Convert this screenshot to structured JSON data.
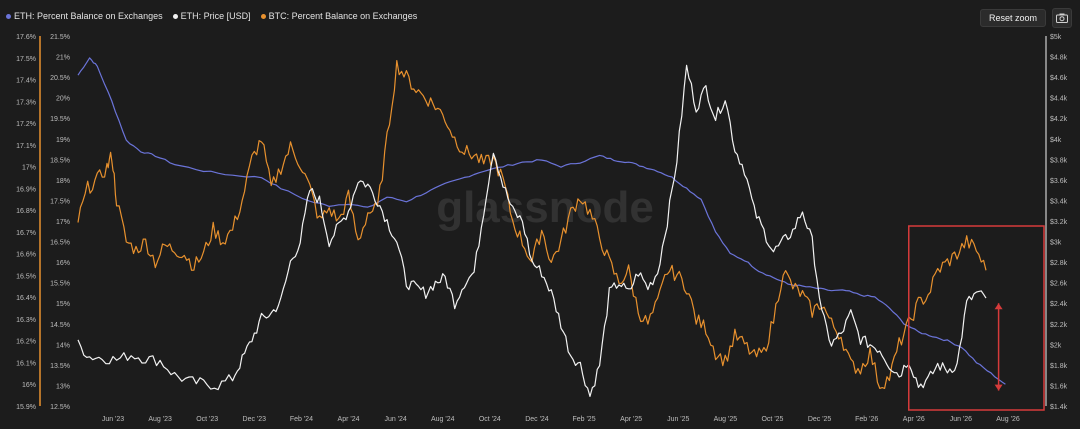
{
  "legend": {
    "items": [
      {
        "label": "ETH: Percent Balance on Exchanges",
        "color": "#6b74d9"
      },
      {
        "label": "ETH: Price [USD]",
        "color": "#f2f2f2"
      },
      {
        "label": "BTC: Percent Balance on Exchanges",
        "color": "#e8912e"
      }
    ]
  },
  "toolbar": {
    "reset_label": "Reset zoom",
    "camera_icon": "camera-icon"
  },
  "watermark": "glassnode",
  "chart_data": {
    "type": "line",
    "title": "",
    "x_range": [
      "2023-04",
      "2026-10"
    ],
    "x_ticks": [
      "Jun '23",
      "Aug '23",
      "Oct '23",
      "Dec '23",
      "Feb '24",
      "Apr '24",
      "Jun '24",
      "Aug '24",
      "Oct '24",
      "Dec '24",
      "Feb '25",
      "Apr '25",
      "Jun '25",
      "Aug '25",
      "Oct '25",
      "Dec '25",
      "Feb '26",
      "Apr '26",
      "Jun '26",
      "Aug '26"
    ],
    "axes": {
      "eth_balance": {
        "side": "left-outer",
        "ticks": [
          "15.9%",
          "16%",
          "16.1%",
          "16.2%",
          "16.3%",
          "16.4%",
          "16.5%",
          "16.6%",
          "16.7%",
          "16.8%",
          "16.9%",
          "17%",
          "17.1%",
          "17.2%",
          "17.3%",
          "17.4%",
          "17.5%",
          "17.6%"
        ],
        "range": [
          15.9,
          17.6
        ]
      },
      "btc_balance": {
        "side": "left-inner",
        "ticks": [
          "12.5%",
          "13%",
          "13.5%",
          "14%",
          "14.5%",
          "15%",
          "15.5%",
          "16%",
          "16.5%",
          "17%",
          "17.5%",
          "18%",
          "18.5%",
          "19%",
          "19.5%",
          "20%",
          "20.5%",
          "21%",
          "21.5%"
        ],
        "range": [
          12.5,
          21.5
        ]
      },
      "eth_price": {
        "side": "right",
        "ticks": [
          "$1.4k",
          "$1.6k",
          "$1.8k",
          "$2k",
          "$2.2k",
          "$2.4k",
          "$2.6k",
          "$2.8k",
          "$3k",
          "$3.2k",
          "$3.4k",
          "$3.6k",
          "$3.8k",
          "$4k",
          "$4.2k",
          "$4.4k",
          "$4.6k",
          "$4.8k",
          "$5k"
        ],
        "range": [
          1400,
          5000
        ]
      }
    },
    "grid": false,
    "legend_position": "top-left",
    "series": [
      {
        "name": "ETH: Percent Balance on Exchanges",
        "axis": "eth_balance",
        "color": "#6b74d9",
        "points": [
          [
            0,
            17.42
          ],
          [
            0.012,
            17.5
          ],
          [
            0.02,
            17.46
          ],
          [
            0.035,
            17.3
          ],
          [
            0.05,
            17.12
          ],
          [
            0.065,
            17.07
          ],
          [
            0.08,
            17.05
          ],
          [
            0.1,
            17.01
          ],
          [
            0.13,
            16.98
          ],
          [
            0.16,
            16.96
          ],
          [
            0.19,
            16.95
          ],
          [
            0.21,
            16.9
          ],
          [
            0.24,
            16.84
          ],
          [
            0.26,
            16.82
          ],
          [
            0.28,
            16.83
          ],
          [
            0.3,
            16.81
          ],
          [
            0.32,
            16.86
          ],
          [
            0.34,
            16.84
          ],
          [
            0.36,
            16.88
          ],
          [
            0.38,
            16.92
          ],
          [
            0.4,
            16.95
          ],
          [
            0.42,
            16.98
          ],
          [
            0.44,
            17.0
          ],
          [
            0.46,
            17.02
          ],
          [
            0.48,
            17.03
          ],
          [
            0.5,
            17.0
          ],
          [
            0.52,
            17.02
          ],
          [
            0.54,
            17.05
          ],
          [
            0.555,
            17.03
          ],
          [
            0.57,
            17.02
          ],
          [
            0.585,
            17.0
          ],
          [
            0.6,
            16.98
          ],
          [
            0.615,
            16.95
          ],
          [
            0.63,
            16.9
          ],
          [
            0.645,
            16.85
          ],
          [
            0.66,
            16.7
          ],
          [
            0.675,
            16.6
          ],
          [
            0.69,
            16.57
          ],
          [
            0.705,
            16.52
          ],
          [
            0.72,
            16.49
          ],
          [
            0.735,
            16.46
          ],
          [
            0.75,
            16.45
          ],
          [
            0.765,
            16.44
          ],
          [
            0.78,
            16.43
          ],
          [
            0.795,
            16.43
          ],
          [
            0.81,
            16.41
          ],
          [
            0.825,
            16.4
          ],
          [
            0.84,
            16.35
          ],
          [
            0.855,
            16.28
          ],
          [
            0.87,
            16.24
          ],
          [
            0.885,
            16.22
          ],
          [
            0.9,
            16.2
          ],
          [
            0.915,
            16.17
          ],
          [
            0.93,
            16.1
          ],
          [
            0.945,
            16.05
          ],
          [
            0.96,
            16.0
          ]
        ]
      },
      {
        "name": "ETH: Price [USD]",
        "axis": "eth_price",
        "color": "#f2f2f2",
        "points": [
          [
            0,
            2000
          ],
          [
            0.012,
            1880
          ],
          [
            0.025,
            1870
          ],
          [
            0.04,
            1850
          ],
          [
            0.055,
            1900
          ],
          [
            0.07,
            1860
          ],
          [
            0.085,
            1840
          ],
          [
            0.1,
            1700
          ],
          [
            0.115,
            1640
          ],
          [
            0.13,
            1620
          ],
          [
            0.145,
            1600
          ],
          [
            0.16,
            1670
          ],
          [
            0.17,
            1850
          ],
          [
            0.18,
            2050
          ],
          [
            0.19,
            2250
          ],
          [
            0.2,
            2300
          ],
          [
            0.21,
            2420
          ],
          [
            0.22,
            2800
          ],
          [
            0.23,
            3000
          ],
          [
            0.24,
            3500
          ],
          [
            0.25,
            3400
          ],
          [
            0.26,
            3000
          ],
          [
            0.27,
            3150
          ],
          [
            0.28,
            3300
          ],
          [
            0.29,
            3600
          ],
          [
            0.3,
            3550
          ],
          [
            0.31,
            3400
          ],
          [
            0.32,
            3200
          ],
          [
            0.33,
            3000
          ],
          [
            0.34,
            2600
          ],
          [
            0.35,
            2550
          ],
          [
            0.36,
            2500
          ],
          [
            0.37,
            2600
          ],
          [
            0.38,
            2650
          ],
          [
            0.39,
            2400
          ],
          [
            0.4,
            2600
          ],
          [
            0.41,
            2700
          ],
          [
            0.42,
            3300
          ],
          [
            0.43,
            3900
          ],
          [
            0.44,
            3550
          ],
          [
            0.45,
            3300
          ],
          [
            0.46,
            3200
          ],
          [
            0.47,
            2800
          ],
          [
            0.48,
            2700
          ],
          [
            0.49,
            2500
          ],
          [
            0.5,
            2200
          ],
          [
            0.51,
            1900
          ],
          [
            0.52,
            1800
          ],
          [
            0.53,
            1500
          ],
          [
            0.54,
            1800
          ],
          [
            0.55,
            2500
          ],
          [
            0.56,
            2600
          ],
          [
            0.57,
            2500
          ],
          [
            0.58,
            2700
          ],
          [
            0.59,
            2550
          ],
          [
            0.6,
            2700
          ],
          [
            0.61,
            3200
          ],
          [
            0.62,
            3800
          ],
          [
            0.63,
            4700
          ],
          [
            0.64,
            4300
          ],
          [
            0.65,
            4500
          ],
          [
            0.66,
            4200
          ],
          [
            0.67,
            4400
          ],
          [
            0.68,
            3900
          ],
          [
            0.69,
            3700
          ],
          [
            0.7,
            3300
          ],
          [
            0.71,
            3100
          ],
          [
            0.72,
            2900
          ],
          [
            0.73,
            3000
          ],
          [
            0.74,
            3100
          ],
          [
            0.75,
            3300
          ],
          [
            0.76,
            3000
          ],
          [
            0.77,
            2300
          ],
          [
            0.78,
            2000
          ],
          [
            0.79,
            2100
          ],
          [
            0.8,
            2300
          ],
          [
            0.81,
            2050
          ],
          [
            0.82,
            2000
          ],
          [
            0.83,
            1950
          ],
          [
            0.84,
            1800
          ],
          [
            0.85,
            1700
          ],
          [
            0.86,
            1850
          ],
          [
            0.87,
            1600
          ],
          [
            0.88,
            1650
          ],
          [
            0.89,
            1800
          ],
          [
            0.9,
            1750
          ],
          [
            0.91,
            1800
          ],
          [
            0.92,
            2400
          ],
          [
            0.93,
            2500
          ],
          [
            0.94,
            2450
          ]
        ]
      },
      {
        "name": "BTC: Percent Balance on Exchanges",
        "axis": "btc_balance",
        "color": "#e8912e",
        "points": [
          [
            0,
            17.0
          ],
          [
            0.01,
            17.8
          ],
          [
            0.02,
            18.0
          ],
          [
            0.03,
            18.3
          ],
          [
            0.035,
            18.6
          ],
          [
            0.04,
            17.5
          ],
          [
            0.05,
            16.5
          ],
          [
            0.06,
            16.3
          ],
          [
            0.07,
            16.5
          ],
          [
            0.08,
            16.0
          ],
          [
            0.09,
            16.4
          ],
          [
            0.1,
            16.3
          ],
          [
            0.11,
            16.2
          ],
          [
            0.12,
            15.9
          ],
          [
            0.13,
            16.2
          ],
          [
            0.14,
            16.8
          ],
          [
            0.15,
            16.5
          ],
          [
            0.16,
            16.8
          ],
          [
            0.17,
            17.5
          ],
          [
            0.18,
            18.5
          ],
          [
            0.19,
            19.0
          ],
          [
            0.2,
            17.8
          ],
          [
            0.21,
            18.3
          ],
          [
            0.22,
            18.8
          ],
          [
            0.23,
            18.4
          ],
          [
            0.24,
            17.8
          ],
          [
            0.25,
            17.0
          ],
          [
            0.26,
            17.3
          ],
          [
            0.27,
            17.0
          ],
          [
            0.28,
            17.6
          ],
          [
            0.29,
            16.5
          ],
          [
            0.3,
            17.2
          ],
          [
            0.31,
            17.3
          ],
          [
            0.32,
            19.0
          ],
          [
            0.33,
            20.8
          ],
          [
            0.34,
            20.5
          ],
          [
            0.35,
            20.2
          ],
          [
            0.36,
            20.0
          ],
          [
            0.37,
            19.8
          ],
          [
            0.38,
            19.5
          ],
          [
            0.39,
            19.0
          ],
          [
            0.4,
            18.7
          ],
          [
            0.41,
            18.6
          ],
          [
            0.42,
            18.4
          ],
          [
            0.43,
            18.5
          ],
          [
            0.44,
            18.0
          ],
          [
            0.45,
            17.0
          ],
          [
            0.46,
            16.5
          ],
          [
            0.47,
            16.0
          ],
          [
            0.48,
            16.8
          ],
          [
            0.49,
            16.0
          ],
          [
            0.5,
            16.5
          ],
          [
            0.51,
            17.2
          ],
          [
            0.52,
            17.6
          ],
          [
            0.53,
            17.2
          ],
          [
            0.54,
            16.6
          ],
          [
            0.55,
            16.0
          ],
          [
            0.56,
            15.5
          ],
          [
            0.57,
            15.8
          ],
          [
            0.58,
            14.8
          ],
          [
            0.59,
            14.5
          ],
          [
            0.6,
            15.0
          ],
          [
            0.61,
            15.8
          ],
          [
            0.62,
            15.7
          ],
          [
            0.63,
            15.4
          ],
          [
            0.64,
            14.6
          ],
          [
            0.65,
            14.4
          ],
          [
            0.66,
            13.8
          ],
          [
            0.67,
            13.6
          ],
          [
            0.68,
            14.2
          ],
          [
            0.69,
            14.0
          ],
          [
            0.7,
            13.7
          ],
          [
            0.71,
            13.8
          ],
          [
            0.72,
            14.6
          ],
          [
            0.73,
            15.8
          ],
          [
            0.74,
            15.4
          ],
          [
            0.75,
            15.2
          ],
          [
            0.76,
            14.8
          ],
          [
            0.77,
            15.0
          ],
          [
            0.78,
            14.5
          ],
          [
            0.79,
            14.2
          ],
          [
            0.8,
            13.5
          ],
          [
            0.81,
            13.4
          ],
          [
            0.82,
            13.8
          ],
          [
            0.83,
            13.0
          ],
          [
            0.84,
            13.2
          ],
          [
            0.85,
            14.0
          ],
          [
            0.86,
            14.5
          ],
          [
            0.87,
            15.0
          ],
          [
            0.88,
            15.2
          ],
          [
            0.89,
            15.8
          ],
          [
            0.9,
            16.0
          ],
          [
            0.91,
            16.2
          ],
          [
            0.92,
            16.5
          ],
          [
            0.93,
            16.3
          ],
          [
            0.94,
            15.8
          ]
        ]
      }
    ],
    "annotations": [
      {
        "kind": "rect",
        "color": "#d63b3b",
        "x_range": [
          0.86,
          1.0
        ],
        "note": ""
      },
      {
        "kind": "arrow",
        "color": "#d63b3b",
        "x": 0.953,
        "from": 2400,
        "to": 1550
      }
    ]
  }
}
